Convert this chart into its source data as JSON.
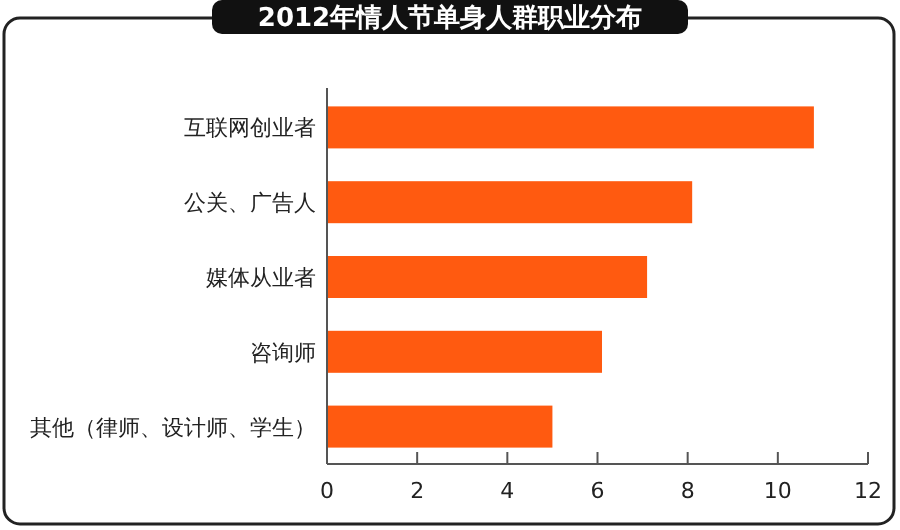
{
  "chart_data": {
    "type": "bar",
    "orientation": "horizontal",
    "title": "2012年情人节单身人群职业分布",
    "categories": [
      "互联网创业者",
      "公关、广告人",
      "媒体从业者",
      "咨询师",
      "其他（律师、设计师、学生）"
    ],
    "values": [
      10.8,
      8.1,
      7.1,
      6.1,
      5.0
    ],
    "color": "#ff5a10",
    "xlim": [
      0,
      12
    ],
    "xticks": [
      0,
      2,
      4,
      6,
      8,
      10,
      12
    ],
    "grid": false
  }
}
